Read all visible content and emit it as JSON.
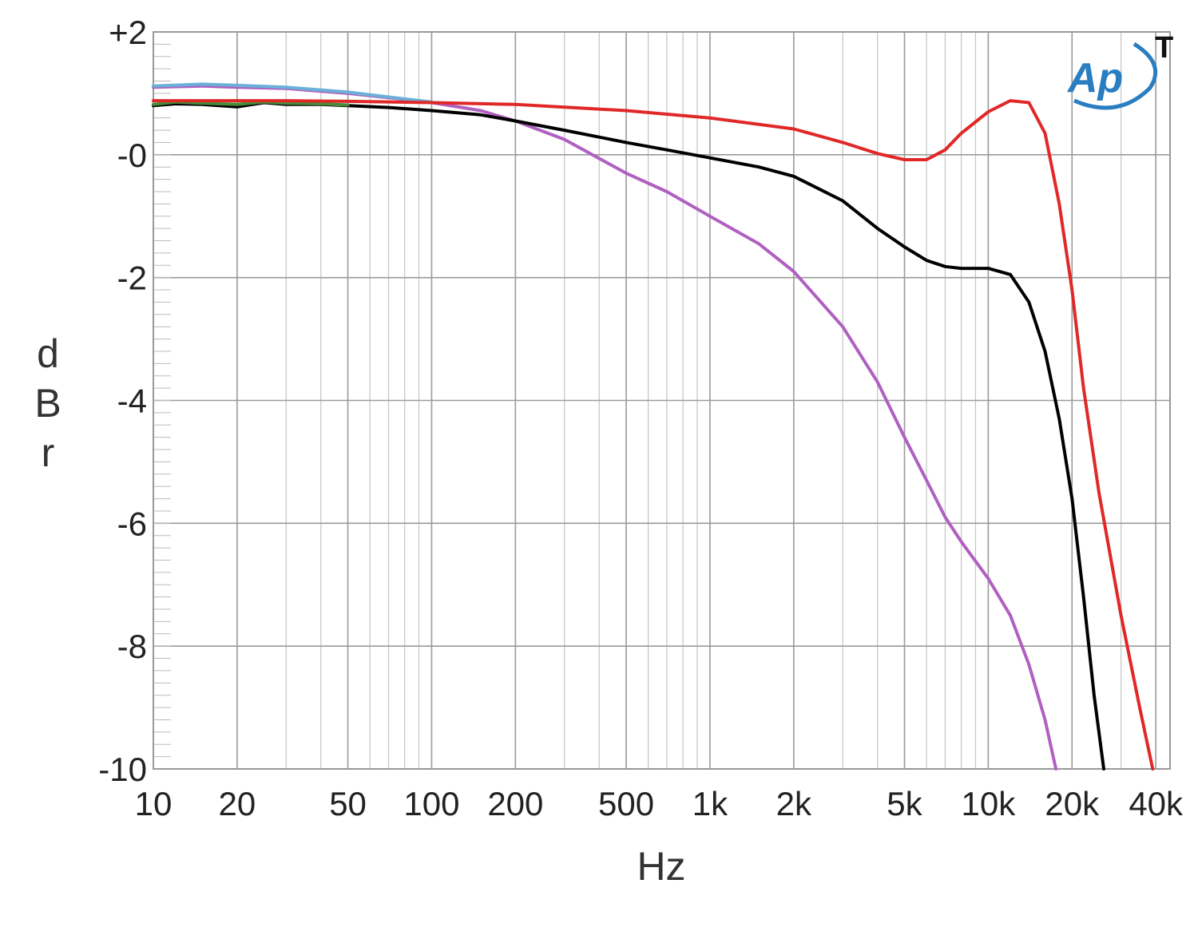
{
  "chart_data": {
    "type": "line",
    "title": "",
    "xlabel": "Hz",
    "ylabel": "dBr",
    "x_scale": "log",
    "xlim": [
      10,
      45000
    ],
    "ylim": [
      -10,
      2
    ],
    "grid": true,
    "legend": "none",
    "x_tick_labels": [
      {
        "value": 10,
        "label": "10"
      },
      {
        "value": 20,
        "label": "20"
      },
      {
        "value": 50,
        "label": "50"
      },
      {
        "value": 100,
        "label": "100"
      },
      {
        "value": 200,
        "label": "200"
      },
      {
        "value": 500,
        "label": "500"
      },
      {
        "value": 1000,
        "label": "1k"
      },
      {
        "value": 2000,
        "label": "2k"
      },
      {
        "value": 5000,
        "label": "5k"
      },
      {
        "value": 10000,
        "label": "10k"
      },
      {
        "value": 20000,
        "label": "20k"
      },
      {
        "value": 40000,
        "label": "40k"
      }
    ],
    "y_tick_labels": [
      {
        "value": 2,
        "label": "+2"
      },
      {
        "value": 0,
        "label": "-0"
      },
      {
        "value": -2,
        "label": "-2"
      },
      {
        "value": -4,
        "label": "-4"
      },
      {
        "value": -6,
        "label": "-6"
      },
      {
        "value": -8,
        "label": "-8"
      },
      {
        "value": -10,
        "label": "-10"
      }
    ],
    "series": [
      {
        "color": "#b060c0",
        "points": [
          [
            10,
            1.1
          ],
          [
            15,
            1.12
          ],
          [
            20,
            1.1
          ],
          [
            30,
            1.08
          ],
          [
            50,
            1.0
          ],
          [
            70,
            0.93
          ],
          [
            100,
            0.85
          ],
          [
            150,
            0.72
          ],
          [
            200,
            0.55
          ],
          [
            300,
            0.25
          ],
          [
            500,
            -0.3
          ],
          [
            700,
            -0.6
          ],
          [
            1000,
            -1.0
          ],
          [
            1500,
            -1.45
          ],
          [
            2000,
            -1.9
          ],
          [
            3000,
            -2.8
          ],
          [
            4000,
            -3.7
          ],
          [
            5000,
            -4.6
          ],
          [
            6000,
            -5.3
          ],
          [
            7000,
            -5.9
          ],
          [
            8000,
            -6.3
          ],
          [
            10000,
            -6.9
          ],
          [
            12000,
            -7.5
          ],
          [
            14000,
            -8.3
          ],
          [
            16000,
            -9.2
          ],
          [
            17500,
            -10
          ]
        ]
      },
      {
        "color": "#6ab0d8",
        "points": [
          [
            10,
            1.12
          ],
          [
            15,
            1.15
          ],
          [
            20,
            1.13
          ],
          [
            30,
            1.1
          ],
          [
            50,
            1.02
          ],
          [
            70,
            0.94
          ],
          [
            100,
            0.86
          ]
        ]
      },
      {
        "color": "#000000",
        "points": [
          [
            10,
            0.8
          ],
          [
            12,
            0.83
          ],
          [
            15,
            0.82
          ],
          [
            20,
            0.78
          ],
          [
            25,
            0.85
          ],
          [
            30,
            0.82
          ],
          [
            40,
            0.82
          ],
          [
            50,
            0.8
          ],
          [
            70,
            0.77
          ],
          [
            100,
            0.72
          ],
          [
            150,
            0.65
          ],
          [
            200,
            0.55
          ],
          [
            300,
            0.4
          ],
          [
            500,
            0.2
          ],
          [
            700,
            0.08
          ],
          [
            1000,
            -0.05
          ],
          [
            1500,
            -0.2
          ],
          [
            2000,
            -0.35
          ],
          [
            3000,
            -0.75
          ],
          [
            4000,
            -1.2
          ],
          [
            5000,
            -1.5
          ],
          [
            6000,
            -1.72
          ],
          [
            7000,
            -1.82
          ],
          [
            8000,
            -1.85
          ],
          [
            10000,
            -1.85
          ],
          [
            12000,
            -1.95
          ],
          [
            14000,
            -2.4
          ],
          [
            16000,
            -3.2
          ],
          [
            18000,
            -4.3
          ],
          [
            20000,
            -5.6
          ],
          [
            22000,
            -7.2
          ],
          [
            24000,
            -8.8
          ],
          [
            26000,
            -10
          ]
        ]
      },
      {
        "color": "#4a8a3a",
        "points": [
          [
            10,
            0.82
          ],
          [
            12,
            0.86
          ],
          [
            15,
            0.84
          ],
          [
            20,
            0.82
          ],
          [
            25,
            0.86
          ],
          [
            30,
            0.84
          ],
          [
            40,
            0.83
          ],
          [
            50,
            0.81
          ]
        ]
      },
      {
        "color": "#e02828",
        "points": [
          [
            10,
            0.88
          ],
          [
            15,
            0.88
          ],
          [
            20,
            0.88
          ],
          [
            30,
            0.88
          ],
          [
            50,
            0.87
          ],
          [
            100,
            0.85
          ],
          [
            200,
            0.82
          ],
          [
            500,
            0.72
          ],
          [
            1000,
            0.6
          ],
          [
            2000,
            0.42
          ],
          [
            3000,
            0.2
          ],
          [
            4000,
            0.02
          ],
          [
            5000,
            -0.08
          ],
          [
            6000,
            -0.08
          ],
          [
            7000,
            0.08
          ],
          [
            8000,
            0.35
          ],
          [
            10000,
            0.7
          ],
          [
            12000,
            0.88
          ],
          [
            14000,
            0.85
          ],
          [
            16000,
            0.35
          ],
          [
            18000,
            -0.8
          ],
          [
            20000,
            -2.2
          ],
          [
            22000,
            -3.8
          ],
          [
            25000,
            -5.5
          ],
          [
            30000,
            -7.5
          ],
          [
            35000,
            -9.0
          ],
          [
            39000,
            -10
          ]
        ]
      }
    ]
  },
  "logo": {
    "text": "Ap",
    "superscript": "T",
    "color": "#2a7dc0"
  }
}
